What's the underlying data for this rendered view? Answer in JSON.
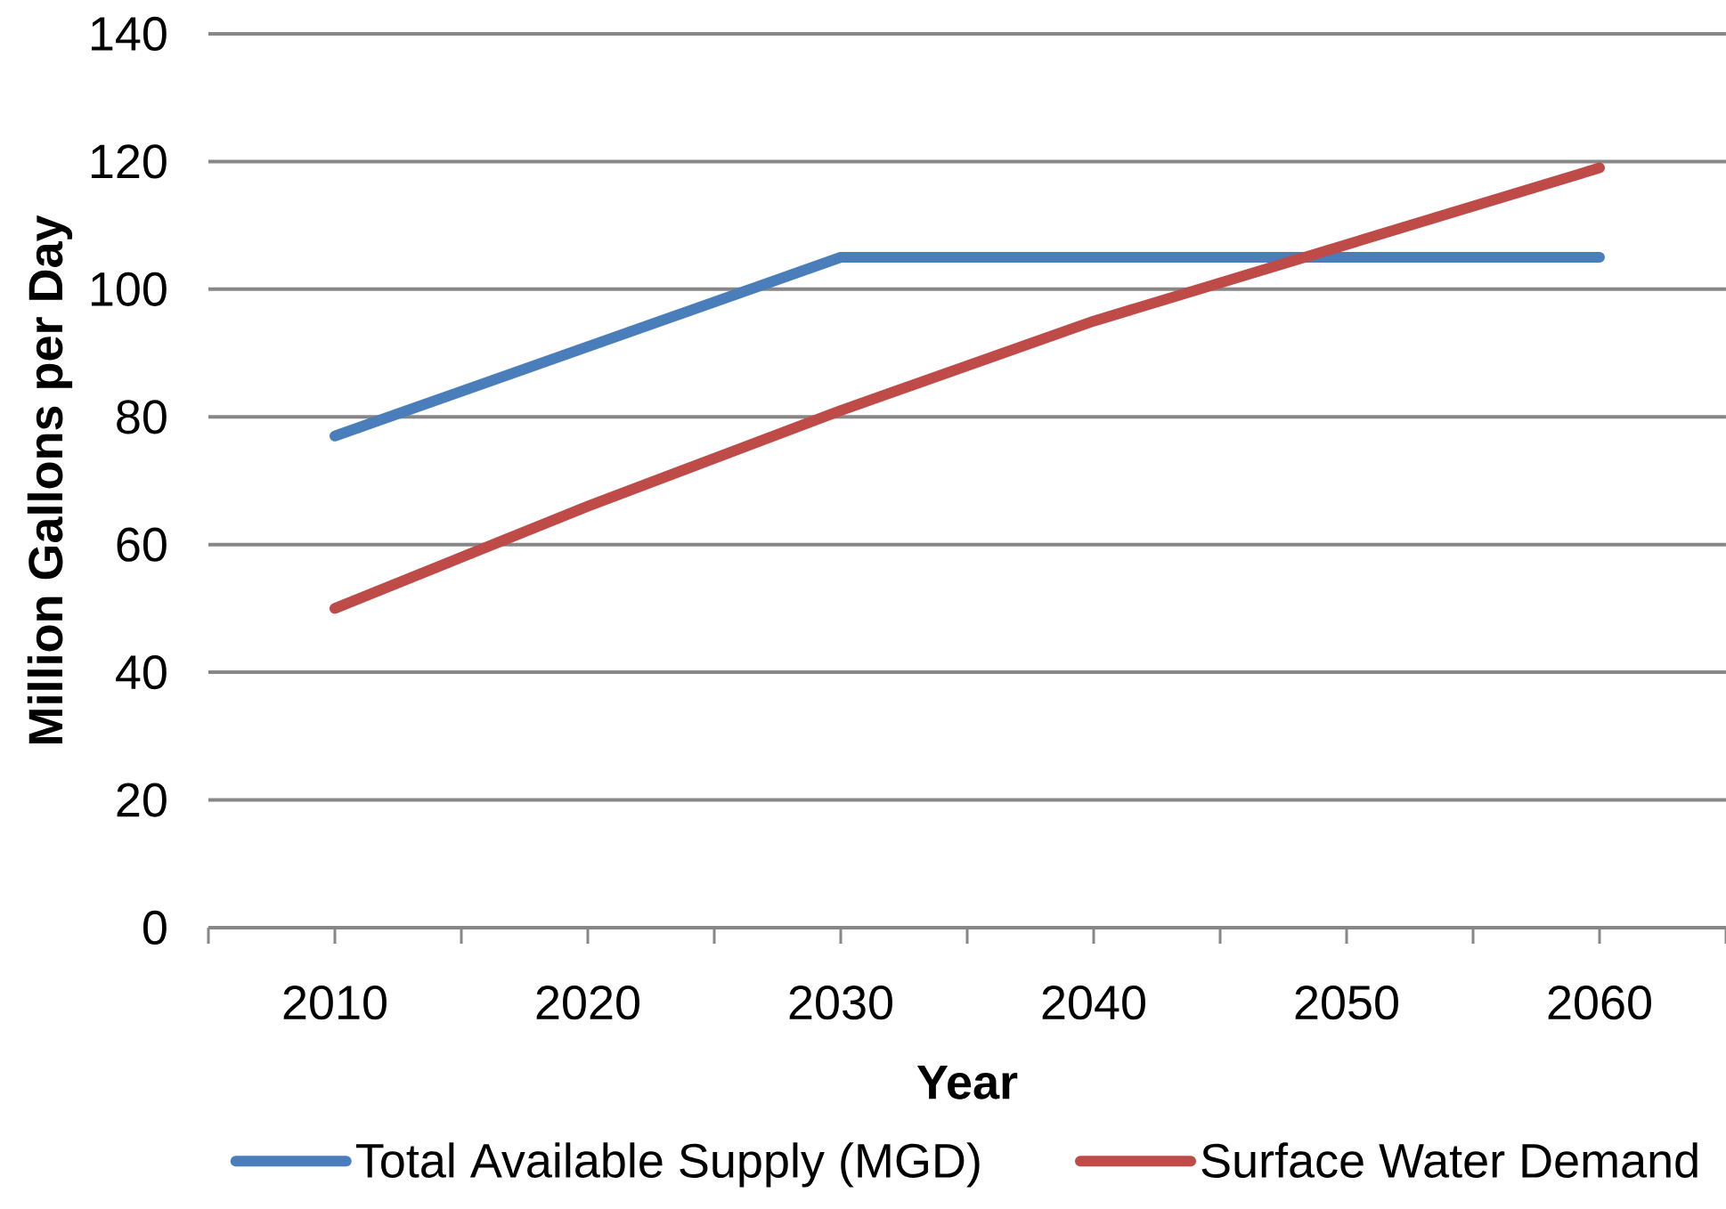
{
  "chart_data": {
    "type": "line",
    "xlabel": "Year",
    "ylabel": "Million Gallons per Day",
    "categories": [
      "2010",
      "2020",
      "2030",
      "2040",
      "2050",
      "2060"
    ],
    "series": [
      {
        "name": "Total Available Supply (MGD)",
        "color": "#4a7ebb",
        "values": [
          77,
          91,
          105,
          105,
          105,
          105
        ]
      },
      {
        "name": "Surface Water Demand",
        "color": "#be4b48",
        "values": [
          50,
          66,
          81,
          95,
          107,
          119
        ]
      }
    ],
    "ylim": [
      0,
      140
    ],
    "yticks": [
      0,
      20,
      40,
      60,
      80,
      100,
      120,
      140
    ],
    "grid": "y",
    "legend": "bottom",
    "marker": "none",
    "line_style": "solid"
  }
}
